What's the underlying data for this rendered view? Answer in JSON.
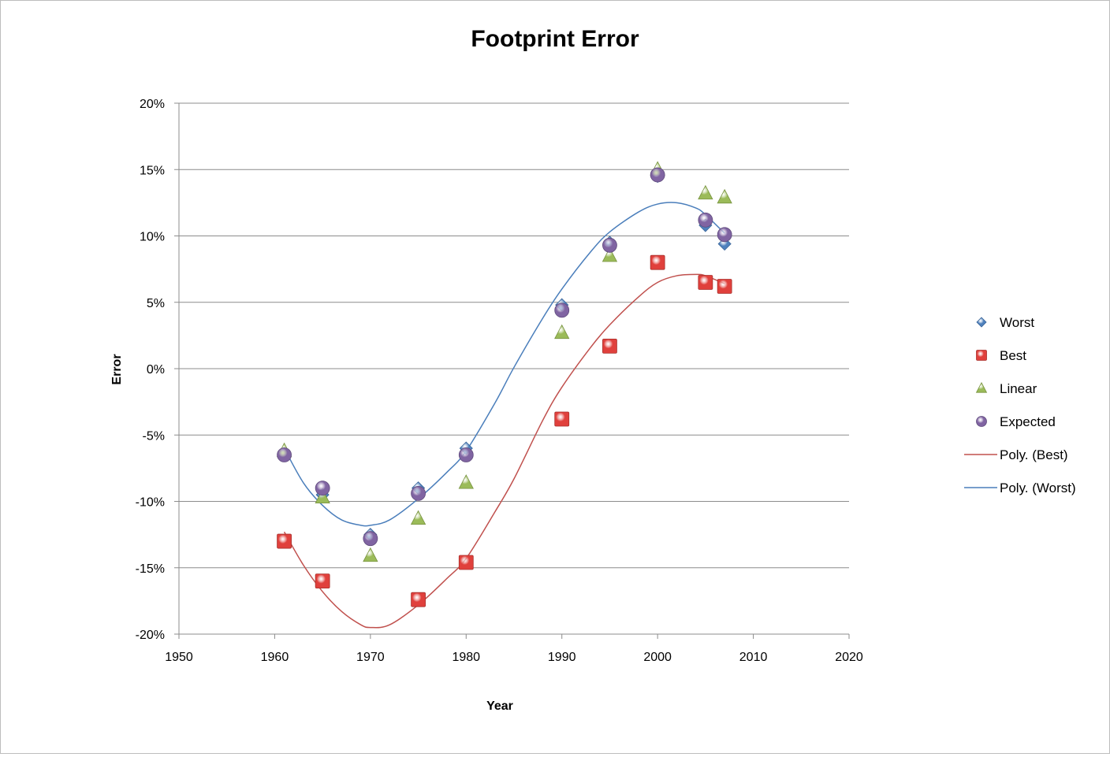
{
  "chart_data": {
    "type": "scatter",
    "title": "Footprint Error",
    "xlabel": "Year",
    "ylabel": "Error",
    "xlim": [
      1950,
      2020
    ],
    "ylim": [
      -20,
      20
    ],
    "x_ticks": [
      1950,
      1960,
      1970,
      1980,
      1990,
      2000,
      2010,
      2020
    ],
    "y_ticks": [
      -20,
      -15,
      -10,
      -5,
      0,
      5,
      10,
      15,
      20
    ],
    "y_tick_labels": [
      "-20%",
      "-15%",
      "-10%",
      "-5%",
      "0%",
      "5%",
      "10%",
      "15%",
      "20%"
    ],
    "x_tick_labels": [
      "1950",
      "1960",
      "1970",
      "1980",
      "1990",
      "2000",
      "2010",
      "2020"
    ],
    "grid": "horizontal",
    "legend_position": "right",
    "series": [
      {
        "name": "Worst",
        "marker": "diamond",
        "color": "#4f81bd",
        "points": [
          [
            1961,
            -6.5
          ],
          [
            1965,
            -9.5
          ],
          [
            1970,
            -12.5
          ],
          [
            1975,
            -9.0
          ],
          [
            1980,
            -6.0
          ],
          [
            1990,
            4.8
          ],
          [
            1995,
            9.5
          ],
          [
            2000,
            14.5
          ],
          [
            2005,
            10.8
          ],
          [
            2007,
            9.4
          ]
        ]
      },
      {
        "name": "Best",
        "marker": "square",
        "color": "#e0403c",
        "points": [
          [
            1961,
            -13.0
          ],
          [
            1965,
            -16.0
          ],
          [
            1975,
            -17.4
          ],
          [
            1980,
            -14.6
          ],
          [
            1990,
            -3.8
          ],
          [
            1995,
            1.7
          ],
          [
            2000,
            8.0
          ],
          [
            2005,
            6.5
          ],
          [
            2007,
            6.2
          ]
        ]
      },
      {
        "name": "Linear",
        "marker": "triangle",
        "color": "#9bbb59",
        "points": [
          [
            1961,
            -6.2
          ],
          [
            1965,
            -9.7
          ],
          [
            1970,
            -14.1
          ],
          [
            1975,
            -11.3
          ],
          [
            1980,
            -8.6
          ],
          [
            1990,
            2.7
          ],
          [
            1995,
            8.5
          ],
          [
            2000,
            15.0
          ],
          [
            2005,
            13.2
          ],
          [
            2007,
            12.9
          ]
        ]
      },
      {
        "name": "Expected",
        "marker": "circle",
        "color": "#8064a2",
        "points": [
          [
            1961,
            -6.5
          ],
          [
            1965,
            -9.0
          ],
          [
            1970,
            -12.8
          ],
          [
            1975,
            -9.4
          ],
          [
            1980,
            -6.5
          ],
          [
            1990,
            4.4
          ],
          [
            1995,
            9.3
          ],
          [
            2000,
            14.6
          ],
          [
            2005,
            11.2
          ],
          [
            2007,
            10.1
          ]
        ]
      }
    ],
    "trendlines": [
      {
        "name": "Poly. (Best)",
        "color": "#c0504d",
        "points": [
          [
            1961,
            -12.3
          ],
          [
            1963,
            -14.8
          ],
          [
            1965,
            -16.8
          ],
          [
            1967,
            -18.3
          ],
          [
            1969,
            -19.3
          ],
          [
            1970,
            -19.5
          ],
          [
            1972,
            -19.3
          ],
          [
            1975,
            -17.8
          ],
          [
            1978,
            -15.8
          ],
          [
            1980,
            -14.3
          ],
          [
            1983,
            -10.8
          ],
          [
            1985,
            -8.3
          ],
          [
            1988,
            -3.9
          ],
          [
            1990,
            -1.4
          ],
          [
            1993,
            1.6
          ],
          [
            1995,
            3.3
          ],
          [
            1998,
            5.4
          ],
          [
            2000,
            6.5
          ],
          [
            2002,
            7.0
          ],
          [
            2004,
            7.1
          ],
          [
            2005,
            7.0
          ],
          [
            2007,
            6.4
          ]
        ]
      },
      {
        "name": "Poly. (Worst)",
        "color": "#4a7ebb",
        "points": [
          [
            1961,
            -6.0
          ],
          [
            1963,
            -8.6
          ],
          [
            1965,
            -10.3
          ],
          [
            1967,
            -11.4
          ],
          [
            1969,
            -11.8
          ],
          [
            1970,
            -11.8
          ],
          [
            1972,
            -11.4
          ],
          [
            1975,
            -9.8
          ],
          [
            1978,
            -7.8
          ],
          [
            1980,
            -6.2
          ],
          [
            1983,
            -2.6
          ],
          [
            1985,
            0.1
          ],
          [
            1988,
            3.8
          ],
          [
            1990,
            6.0
          ],
          [
            1993,
            8.8
          ],
          [
            1995,
            10.3
          ],
          [
            1998,
            11.8
          ],
          [
            2000,
            12.4
          ],
          [
            2002,
            12.5
          ],
          [
            2004,
            12.1
          ],
          [
            2005,
            11.6
          ],
          [
            2007,
            10.2
          ]
        ]
      }
    ]
  }
}
